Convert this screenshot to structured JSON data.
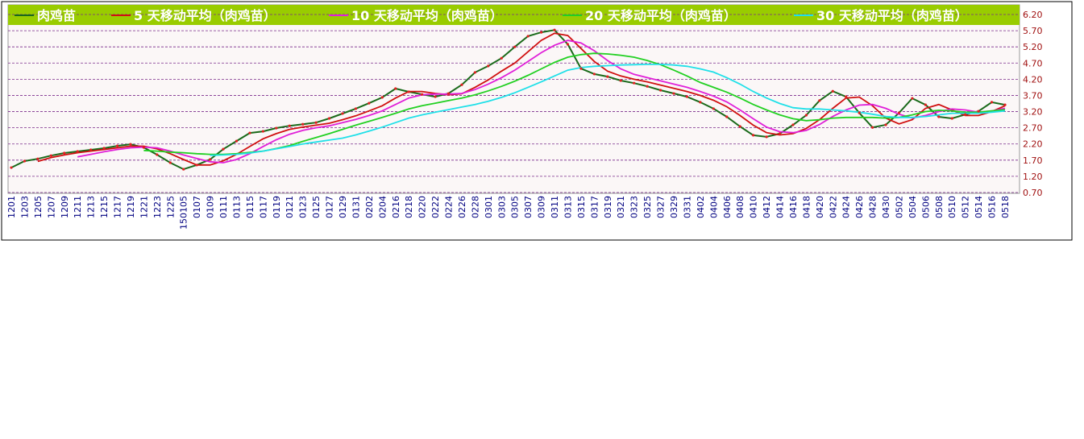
{
  "chart_data": {
    "type": "line",
    "categories": [
      "1201",
      "1203",
      "1205",
      "1207",
      "1209",
      "1211",
      "1213",
      "1215",
      "1217",
      "1219",
      "1221",
      "1223",
      "1225",
      "150105",
      "0107",
      "0109",
      "0111",
      "0113",
      "0115",
      "0117",
      "0119",
      "0121",
      "0123",
      "0125",
      "0127",
      "0129",
      "0131",
      "0202",
      "0204",
      "0216",
      "0218",
      "0220",
      "0222",
      "0224",
      "0226",
      "0228",
      "0301",
      "0303",
      "0305",
      "0307",
      "0309",
      "0311",
      "0313",
      "0315",
      "0317",
      "0319",
      "0321",
      "0323",
      "0325",
      "0327",
      "0329",
      "0331",
      "0402",
      "0404",
      "0406",
      "0408",
      "0410",
      "0412",
      "0414",
      "0416",
      "0418",
      "0420",
      "0422",
      "0424",
      "0426",
      "0428",
      "0430",
      "0502",
      "0504",
      "0506",
      "0508",
      "0510",
      "0512",
      "0514",
      "0516",
      "0518"
    ],
    "series": [
      {
        "name": "肉鸡苗",
        "color": "#1a6a1a",
        "marker_color": "#e02020",
        "values": [
          1.47,
          1.67,
          1.74,
          1.84,
          1.92,
          1.97,
          2.02,
          2.07,
          2.14,
          2.19,
          2.09,
          1.87,
          1.62,
          1.42,
          1.55,
          1.72,
          2.04,
          2.29,
          2.54,
          2.59,
          2.69,
          2.76,
          2.81,
          2.86,
          2.99,
          3.14,
          3.29,
          3.46,
          3.64,
          3.91,
          3.81,
          3.73,
          3.66,
          3.76,
          4.03,
          4.41,
          4.61,
          4.85,
          5.2,
          5.53,
          5.65,
          5.72,
          5.28,
          4.53,
          4.36,
          4.28,
          4.16,
          4.08,
          3.98,
          3.86,
          3.76,
          3.66,
          3.49,
          3.29,
          3.04,
          2.74,
          2.47,
          2.42,
          2.52,
          2.79,
          3.09,
          3.54,
          3.83,
          3.66,
          3.16,
          2.71,
          2.79,
          3.16,
          3.61,
          3.41,
          3.04,
          2.99,
          3.11,
          3.21,
          3.49,
          3.41
        ]
      },
      {
        "name": "5 天移动平均（肉鸡苗）",
        "color": "#d01010",
        "values": [
          null,
          null,
          1.66,
          1.78,
          1.86,
          1.93,
          1.98,
          2.03,
          2.08,
          2.13,
          2.13,
          2.05,
          1.9,
          1.72,
          1.55,
          1.55,
          1.68,
          1.88,
          2.12,
          2.36,
          2.52,
          2.65,
          2.72,
          2.78,
          2.84,
          2.95,
          3.07,
          3.22,
          3.38,
          3.62,
          3.82,
          3.82,
          3.76,
          3.72,
          3.75,
          3.95,
          4.18,
          4.45,
          4.7,
          5.05,
          5.4,
          5.62,
          5.55,
          5.15,
          4.75,
          4.45,
          4.3,
          4.2,
          4.12,
          4.02,
          3.92,
          3.82,
          3.7,
          3.55,
          3.35,
          3.08,
          2.78,
          2.55,
          2.48,
          2.52,
          2.68,
          2.95,
          3.3,
          3.62,
          3.65,
          3.38,
          3.0,
          2.82,
          2.95,
          3.3,
          3.42,
          3.25,
          3.08,
          3.08,
          3.2,
          3.38
        ]
      },
      {
        "name": "10 天移动平均（肉鸡苗）",
        "color": "#e020d8",
        "values": [
          null,
          null,
          null,
          null,
          null,
          1.8,
          1.88,
          1.96,
          2.03,
          2.08,
          2.1,
          2.08,
          1.98,
          1.86,
          1.75,
          1.65,
          1.62,
          1.72,
          1.9,
          2.12,
          2.33,
          2.5,
          2.62,
          2.7,
          2.76,
          2.86,
          2.96,
          3.08,
          3.22,
          3.42,
          3.62,
          3.72,
          3.74,
          3.74,
          3.76,
          3.88,
          4.05,
          4.25,
          4.48,
          4.75,
          5.02,
          5.25,
          5.4,
          5.32,
          5.08,
          4.78,
          4.52,
          4.35,
          4.25,
          4.15,
          4.05,
          3.95,
          3.82,
          3.68,
          3.5,
          3.25,
          2.98,
          2.72,
          2.58,
          2.55,
          2.62,
          2.8,
          3.05,
          3.25,
          3.4,
          3.42,
          3.3,
          3.12,
          3.0,
          3.08,
          3.2,
          3.28,
          3.25,
          3.18,
          3.22,
          3.3
        ]
      },
      {
        "name": "20 天移动平均（肉鸡苗）",
        "color": "#22d022",
        "values": [
          null,
          null,
          null,
          null,
          null,
          null,
          null,
          null,
          null,
          null,
          2.0,
          1.98,
          1.95,
          1.93,
          1.9,
          1.88,
          1.88,
          1.9,
          1.94,
          1.98,
          2.06,
          2.15,
          2.28,
          2.4,
          2.52,
          2.65,
          2.78,
          2.9,
          3.02,
          3.15,
          3.28,
          3.38,
          3.46,
          3.54,
          3.62,
          3.72,
          3.84,
          3.98,
          4.14,
          4.32,
          4.52,
          4.72,
          4.88,
          4.96,
          5.0,
          4.98,
          4.94,
          4.88,
          4.78,
          4.65,
          4.48,
          4.3,
          4.1,
          3.95,
          3.8,
          3.62,
          3.42,
          3.25,
          3.1,
          2.98,
          2.92,
          2.95,
          3.0,
          3.02,
          3.02,
          3.02,
          3.0,
          3.02,
          3.1,
          3.2,
          3.24,
          3.22,
          3.18,
          3.18,
          3.22,
          3.26
        ]
      },
      {
        "name": "30 天移动平均（肉鸡苗）",
        "color": "#20e0e8",
        "values": [
          null,
          null,
          null,
          null,
          null,
          null,
          null,
          null,
          null,
          null,
          null,
          null,
          null,
          null,
          null,
          1.85,
          1.86,
          1.88,
          1.92,
          1.98,
          2.05,
          2.12,
          2.2,
          2.26,
          2.32,
          2.38,
          2.48,
          2.6,
          2.72,
          2.86,
          3.0,
          3.1,
          3.18,
          3.26,
          3.34,
          3.42,
          3.52,
          3.64,
          3.78,
          3.95,
          4.12,
          4.3,
          4.48,
          4.56,
          4.6,
          4.62,
          4.64,
          4.65,
          4.66,
          4.66,
          4.64,
          4.6,
          4.52,
          4.42,
          4.25,
          4.05,
          3.82,
          3.62,
          3.45,
          3.32,
          3.28,
          3.28,
          3.25,
          3.22,
          3.18,
          3.12,
          3.05,
          3.02,
          3.02,
          3.05,
          3.1,
          3.15,
          3.15,
          3.15,
          3.18,
          3.22
        ]
      }
    ],
    "ylim": [
      0.7,
      6.2
    ],
    "yticks": [
      {
        "value": 0.7,
        "label": "0.70"
      },
      {
        "value": 1.2,
        "label": "1.20"
      },
      {
        "value": 1.7,
        "label": "1.70"
      },
      {
        "value": 2.2,
        "label": "2.20"
      },
      {
        "value": 2.7,
        "label": "2.70"
      },
      {
        "value": 3.2,
        "label": "3.20"
      },
      {
        "value": 3.7,
        "label": "3.70"
      },
      {
        "value": 4.2,
        "label": "4.20"
      },
      {
        "value": 4.7,
        "label": "4.70"
      },
      {
        "value": 5.2,
        "label": "5.20"
      },
      {
        "value": 5.7,
        "label": "5.70"
      },
      {
        "value": 6.2,
        "label": "6.20"
      }
    ],
    "grid": true
  }
}
